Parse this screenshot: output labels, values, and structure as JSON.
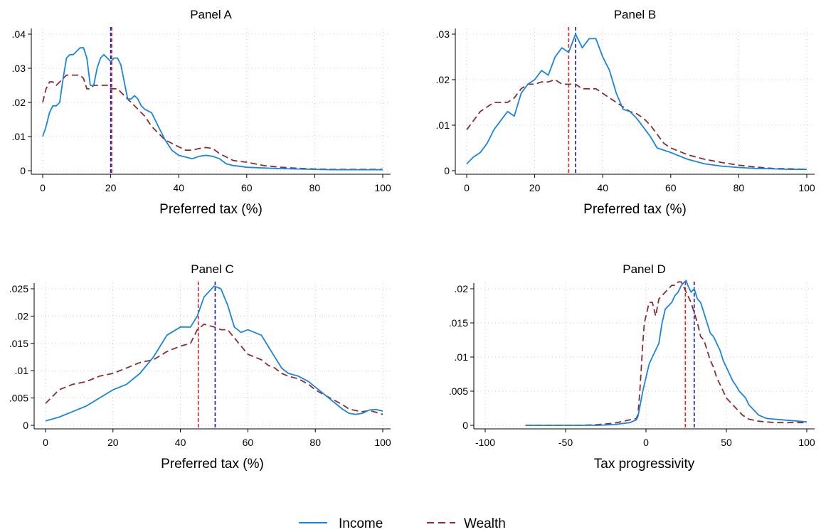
{
  "colors": {
    "income": "#1a85e0",
    "wealth": "#8b2d35",
    "income_mean": "#1414e6",
    "wealth_mean": "#e02020",
    "grid": "#c8c8c8"
  },
  "legend": {
    "placement": "bottom-center",
    "income_label": "Income",
    "wealth_label": "Wealth"
  },
  "chart_data": [
    {
      "type": "line",
      "title": "Panel A",
      "xlabel": "Preferred tax (%)",
      "ylabel": "",
      "xlim": [
        0,
        100
      ],
      "ylim": [
        0,
        0.04
      ],
      "grid": true,
      "xticks": [
        0,
        20,
        40,
        60,
        80,
        100
      ],
      "xtick_labels": [
        "0",
        "20",
        "40",
        "60",
        "80",
        "100"
      ],
      "yticks": [
        0,
        0.01,
        0.02,
        0.03,
        0.04
      ],
      "ytick_labels": [
        "0",
        ".01",
        ".02",
        ".03",
        ".04"
      ],
      "vlines": [
        {
          "series": "Wealth",
          "x": 20.3
        },
        {
          "series": "Income",
          "x": 20
        }
      ],
      "series": [
        {
          "name": "Income",
          "x": [
            0,
            1,
            2,
            3,
            4,
            5,
            6,
            7,
            8,
            9,
            10,
            11,
            12,
            13,
            14,
            15,
            16,
            17,
            18,
            19,
            20,
            21,
            22,
            23,
            24,
            25,
            26,
            27,
            28,
            29,
            30,
            32,
            34,
            36,
            38,
            40,
            42,
            44,
            46,
            48,
            50,
            52,
            54,
            56,
            58,
            60,
            65,
            70,
            75,
            80,
            85,
            90,
            95,
            100
          ],
          "y": [
            0.01,
            0.013,
            0.017,
            0.019,
            0.019,
            0.02,
            0.027,
            0.033,
            0.034,
            0.034,
            0.035,
            0.036,
            0.036,
            0.033,
            0.025,
            0.025,
            0.03,
            0.033,
            0.034,
            0.033,
            0.032,
            0.033,
            0.033,
            0.031,
            0.026,
            0.021,
            0.021,
            0.022,
            0.021,
            0.019,
            0.018,
            0.017,
            0.013,
            0.009,
            0.006,
            0.0045,
            0.004,
            0.0035,
            0.0042,
            0.0045,
            0.0042,
            0.0035,
            0.002,
            0.0015,
            0.0013,
            0.001,
            0.0008,
            0.0006,
            0.0005,
            0.0004,
            0.0003,
            0.0003,
            0.0003,
            0.0003
          ]
        },
        {
          "name": "Wealth",
          "x": [
            0,
            1,
            2,
            3,
            4,
            5,
            6,
            7,
            8,
            9,
            10,
            11,
            12,
            13,
            14,
            15,
            16,
            17,
            18,
            19,
            20,
            21,
            22,
            23,
            24,
            25,
            26,
            27,
            28,
            29,
            30,
            32,
            34,
            36,
            38,
            40,
            42,
            44,
            46,
            48,
            50,
            52,
            54,
            56,
            58,
            60,
            65,
            70,
            75,
            80,
            85,
            90,
            95,
            100
          ],
          "y": [
            0.02,
            0.024,
            0.026,
            0.026,
            0.025,
            0.026,
            0.027,
            0.028,
            0.028,
            0.028,
            0.028,
            0.028,
            0.027,
            0.024,
            0.024,
            0.025,
            0.025,
            0.025,
            0.025,
            0.025,
            0.024,
            0.024,
            0.024,
            0.023,
            0.022,
            0.021,
            0.02,
            0.019,
            0.018,
            0.017,
            0.016,
            0.013,
            0.011,
            0.009,
            0.008,
            0.007,
            0.006,
            0.006,
            0.0065,
            0.0068,
            0.0065,
            0.005,
            0.004,
            0.003,
            0.0027,
            0.0025,
            0.0015,
            0.001,
            0.0007,
            0.0005,
            0.0004,
            0.0004,
            0.0004,
            0.0004
          ]
        }
      ]
    },
    {
      "type": "line",
      "title": "Panel B",
      "xlabel": "Preferred tax (%)",
      "ylabel": "",
      "xlim": [
        0,
        100
      ],
      "ylim": [
        0,
        0.03
      ],
      "grid": true,
      "xticks": [
        0,
        20,
        40,
        60,
        80,
        100
      ],
      "xtick_labels": [
        "0",
        "20",
        "40",
        "60",
        "80",
        "100"
      ],
      "yticks": [
        0,
        0.01,
        0.02,
        0.03
      ],
      "ytick_labels": [
        "0",
        ".01",
        ".02",
        ".03"
      ],
      "vlines": [
        {
          "series": "Wealth",
          "x": 30
        },
        {
          "series": "Income",
          "x": 32
        }
      ],
      "series": [
        {
          "name": "Income",
          "x": [
            0,
            2,
            4,
            6,
            8,
            10,
            12,
            14,
            16,
            18,
            20,
            22,
            24,
            26,
            28,
            30,
            32,
            34,
            36,
            38,
            40,
            42,
            44,
            46,
            48,
            50,
            52,
            54,
            56,
            58,
            60,
            65,
            70,
            75,
            80,
            85,
            90,
            95,
            100
          ],
          "y": [
            0.0015,
            0.003,
            0.004,
            0.006,
            0.009,
            0.011,
            0.013,
            0.012,
            0.017,
            0.019,
            0.02,
            0.022,
            0.021,
            0.025,
            0.027,
            0.026,
            0.03,
            0.027,
            0.029,
            0.029,
            0.025,
            0.022,
            0.017,
            0.0135,
            0.013,
            0.0115,
            0.0095,
            0.0075,
            0.005,
            0.0045,
            0.004,
            0.0025,
            0.0015,
            0.001,
            0.0007,
            0.0005,
            0.0004,
            0.0003,
            0.0003
          ]
        },
        {
          "name": "Wealth",
          "x": [
            0,
            2,
            4,
            6,
            8,
            10,
            12,
            14,
            16,
            18,
            20,
            22,
            24,
            26,
            28,
            30,
            32,
            34,
            36,
            38,
            40,
            42,
            44,
            46,
            48,
            50,
            52,
            54,
            56,
            58,
            60,
            65,
            70,
            75,
            80,
            85,
            90,
            95,
            100
          ],
          "y": [
            0.009,
            0.011,
            0.013,
            0.014,
            0.015,
            0.015,
            0.015,
            0.016,
            0.018,
            0.019,
            0.019,
            0.0195,
            0.0195,
            0.02,
            0.019,
            0.019,
            0.019,
            0.018,
            0.018,
            0.018,
            0.017,
            0.016,
            0.015,
            0.014,
            0.013,
            0.0125,
            0.0115,
            0.01,
            0.008,
            0.006,
            0.005,
            0.0035,
            0.0025,
            0.0018,
            0.0012,
            0.0008,
            0.0005,
            0.0004,
            0.0003
          ]
        }
      ]
    },
    {
      "type": "line",
      "title": "Panel C",
      "xlabel": "Preferred tax (%)",
      "ylabel": "",
      "xlim": [
        0,
        100
      ],
      "ylim": [
        0,
        0.025
      ],
      "grid": true,
      "xticks": [
        0,
        20,
        40,
        60,
        80,
        100
      ],
      "xtick_labels": [
        "0",
        "20",
        "40",
        "60",
        "80",
        "100"
      ],
      "yticks": [
        0,
        0.005,
        0.01,
        0.015,
        0.02,
        0.025
      ],
      "ytick_labels": [
        "0",
        ".005",
        ".01",
        ".015",
        ".02",
        ".025"
      ],
      "vlines": [
        {
          "series": "Wealth",
          "x": 45.3
        },
        {
          "series": "Income",
          "x": 50.3
        }
      ],
      "series": [
        {
          "name": "Income",
          "x": [
            0,
            4,
            8,
            12,
            16,
            20,
            24,
            28,
            32,
            36,
            40,
            43,
            45,
            47,
            50,
            52,
            54,
            56,
            58,
            60,
            62,
            64,
            66,
            68,
            70,
            72,
            75,
            78,
            80,
            82,
            85,
            88,
            90,
            92,
            94,
            96,
            98,
            100
          ],
          "y": [
            0.0008,
            0.0015,
            0.0025,
            0.0035,
            0.005,
            0.0065,
            0.0075,
            0.0095,
            0.0125,
            0.0165,
            0.018,
            0.018,
            0.02,
            0.0235,
            0.0255,
            0.025,
            0.022,
            0.018,
            0.017,
            0.0175,
            0.017,
            0.0165,
            0.0145,
            0.0125,
            0.0105,
            0.0095,
            0.009,
            0.008,
            0.007,
            0.006,
            0.0045,
            0.003,
            0.0022,
            0.002,
            0.0022,
            0.0028,
            0.0029,
            0.0026
          ]
        },
        {
          "name": "Wealth",
          "x": [
            0,
            4,
            8,
            12,
            16,
            20,
            24,
            28,
            32,
            36,
            40,
            43,
            45,
            47,
            50,
            52,
            54,
            56,
            58,
            60,
            62,
            64,
            66,
            68,
            70,
            72,
            75,
            78,
            80,
            82,
            85,
            88,
            90,
            92,
            94,
            96,
            98,
            100
          ],
          "y": [
            0.004,
            0.0065,
            0.0075,
            0.008,
            0.009,
            0.0095,
            0.0105,
            0.0115,
            0.012,
            0.0135,
            0.0145,
            0.015,
            0.0175,
            0.0185,
            0.018,
            0.0175,
            0.0175,
            0.016,
            0.0145,
            0.013,
            0.0125,
            0.012,
            0.011,
            0.0105,
            0.0095,
            0.009,
            0.0085,
            0.0075,
            0.0065,
            0.0058,
            0.0048,
            0.0038,
            0.003,
            0.0027,
            0.0025,
            0.0027,
            0.0024,
            0.002
          ]
        }
      ]
    },
    {
      "type": "line",
      "title": "Panel D",
      "xlabel": "Tax progressivity",
      "ylabel": "",
      "xlim": [
        -100,
        100
      ],
      "ylim": [
        0,
        0.02
      ],
      "grid": true,
      "xticks": [
        -100,
        -50,
        0,
        50,
        100
      ],
      "xtick_labels": [
        "-100",
        "-50",
        "0",
        "50",
        "100"
      ],
      "yticks": [
        0,
        0.005,
        0.01,
        0.015,
        0.02
      ],
      "ytick_labels": [
        "0",
        ".005",
        ".01",
        ".015",
        ".02"
      ],
      "vlines": [
        {
          "series": "Wealth",
          "x": 24.5
        },
        {
          "series": "Income",
          "x": 30
        }
      ],
      "series": [
        {
          "name": "Income",
          "x": [
            -75,
            -60,
            -50,
            -40,
            -30,
            -20,
            -10,
            -6,
            -5,
            -4,
            -2,
            0,
            2,
            4,
            6,
            8,
            10,
            12,
            14,
            16,
            18,
            20,
            22,
            24,
            25,
            26,
            28,
            30,
            32,
            34,
            36,
            38,
            40,
            42,
            44,
            46,
            48,
            50,
            52,
            54,
            56,
            58,
            60,
            62,
            64,
            66,
            68,
            70,
            75,
            80,
            85,
            90,
            95,
            100
          ],
          "y": [
            0,
            0,
            0,
            0,
            0,
            0.0001,
            0.0004,
            0.0008,
            0.0013,
            0.0025,
            0.005,
            0.007,
            0.009,
            0.01,
            0.011,
            0.012,
            0.015,
            0.017,
            0.0175,
            0.018,
            0.019,
            0.0195,
            0.0205,
            0.021,
            0.0212,
            0.0205,
            0.0195,
            0.02,
            0.0185,
            0.018,
            0.0165,
            0.015,
            0.0135,
            0.013,
            0.012,
            0.011,
            0.0095,
            0.0085,
            0.0075,
            0.0065,
            0.0058,
            0.005,
            0.0045,
            0.004,
            0.003,
            0.0025,
            0.002,
            0.0015,
            0.001,
            0.0009,
            0.0008,
            0.0007,
            0.0006,
            0.0005
          ]
        },
        {
          "name": "Wealth",
          "x": [
            -75,
            -60,
            -50,
            -40,
            -30,
            -20,
            -10,
            -6,
            -5,
            -4,
            -3,
            -2,
            -1,
            0,
            2,
            4,
            6,
            8,
            10,
            12,
            14,
            16,
            18,
            20,
            22,
            24,
            25,
            26,
            28,
            30,
            32,
            34,
            36,
            38,
            40,
            42,
            44,
            46,
            48,
            50,
            52,
            54,
            56,
            58,
            60,
            62,
            64,
            66,
            68,
            70,
            75,
            80,
            85,
            90,
            95,
            100
          ],
          "y": [
            0,
            0,
            0,
            0,
            0.0001,
            0.0003,
            0.0008,
            0.001,
            0.0016,
            0.0045,
            0.008,
            0.012,
            0.015,
            0.016,
            0.018,
            0.018,
            0.016,
            0.0185,
            0.019,
            0.0195,
            0.02,
            0.0205,
            0.0205,
            0.021,
            0.021,
            0.02,
            0.0195,
            0.019,
            0.018,
            0.0165,
            0.015,
            0.013,
            0.0125,
            0.011,
            0.0095,
            0.0085,
            0.007,
            0.006,
            0.005,
            0.004,
            0.0035,
            0.003,
            0.0025,
            0.002,
            0.0015,
            0.0012,
            0.0009,
            0.0008,
            0.0007,
            0.0006,
            0.0005,
            0.0004,
            0.0004,
            0.0004,
            0.0004,
            0.0004
          ]
        }
      ]
    }
  ]
}
